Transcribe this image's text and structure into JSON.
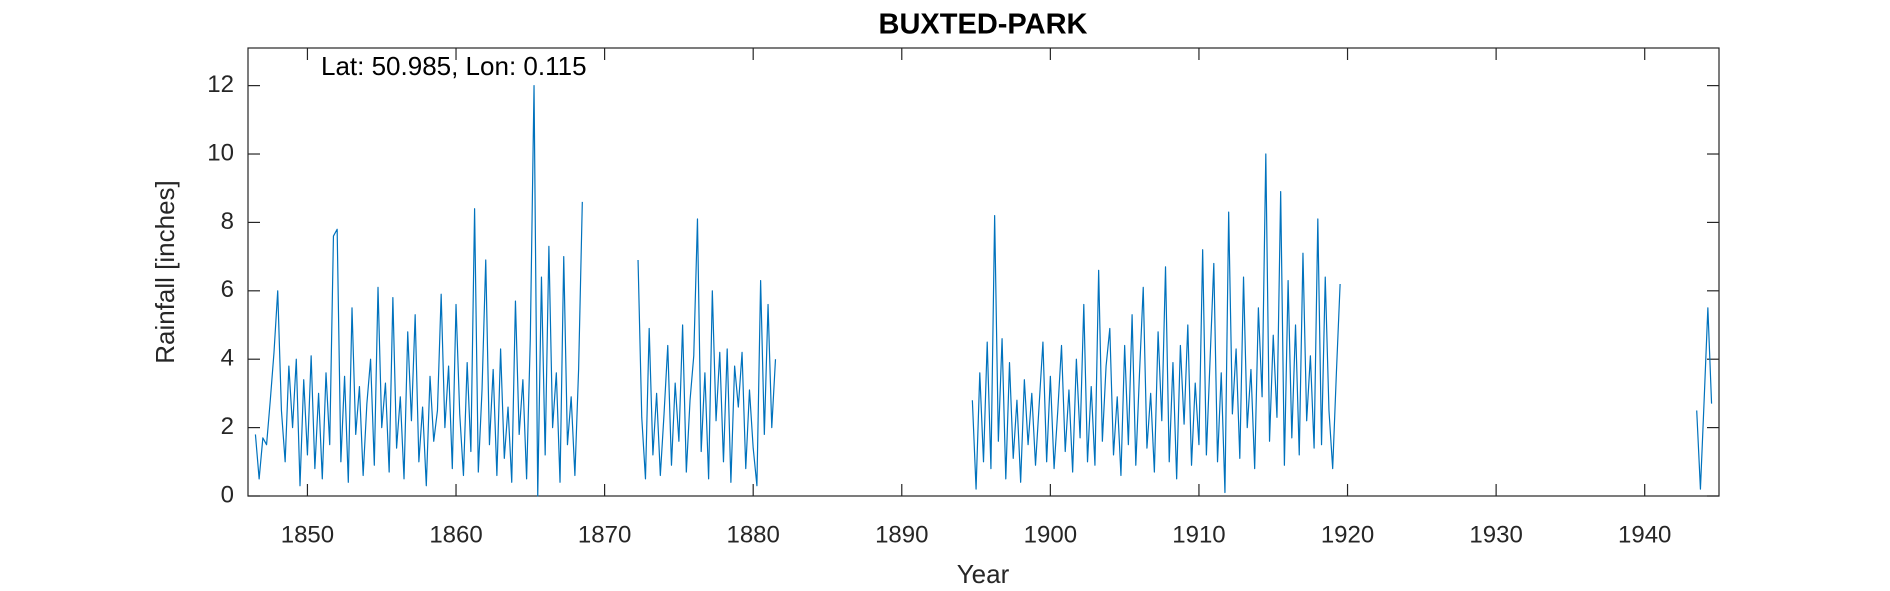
{
  "chart_data": {
    "type": "line",
    "title": "BUXTED-PARK",
    "annotation": "Lat: 50.985, Lon: 0.115",
    "x_label": "Year",
    "y_label": "Rainfall [inches]",
    "color": "#0072BD",
    "grid": false,
    "xlim": [
      1846,
      1945
    ],
    "xticks": [
      1850,
      1860,
      1870,
      1880,
      1890,
      1900,
      1910,
      1920,
      1930,
      1940
    ],
    "ylim": [
      0,
      13.1
    ],
    "yticks": [
      0,
      2,
      4,
      6,
      8,
      10,
      12
    ],
    "x": [
      1846.5,
      1846.75,
      1847,
      1847.25,
      1847.5,
      1847.75,
      1848,
      1848.25,
      1848.5,
      1848.75,
      1849,
      1849.25,
      1849.5,
      1849.75,
      1850,
      1850.25,
      1850.5,
      1850.75,
      1851,
      1851.25,
      1851.5,
      1851.75,
      1852,
      1852.25,
      1852.5,
      1852.75,
      1853,
      1853.25,
      1853.5,
      1853.75,
      1854,
      1854.25,
      1854.5,
      1854.75,
      1855,
      1855.25,
      1855.5,
      1855.75,
      1856,
      1856.25,
      1856.5,
      1856.75,
      1857,
      1857.25,
      1857.5,
      1857.75,
      1858,
      1858.25,
      1858.5,
      1858.75,
      1859,
      1859.25,
      1859.5,
      1859.75,
      1860,
      1860.25,
      1860.5,
      1860.75,
      1861,
      1861.25,
      1861.5,
      1861.75,
      1862,
      1862.25,
      1862.5,
      1862.75,
      1863,
      1863.25,
      1863.5,
      1863.75,
      1864,
      1864.25,
      1864.5,
      1864.75,
      1865,
      1865.25,
      1865.5,
      1865.75,
      1866,
      1866.25,
      1866.5,
      1866.75,
      1867,
      1867.25,
      1867.5,
      1867.75,
      1868,
      1868.25,
      1868.5,
      1870,
      1872.25,
      1872.5,
      1872.75,
      1873,
      1873.25,
      1873.5,
      1873.75,
      1874,
      1874.25,
      1874.5,
      1874.75,
      1875,
      1875.25,
      1875.5,
      1875.75,
      1876,
      1876.25,
      1876.5,
      1876.75,
      1877,
      1877.25,
      1877.5,
      1877.75,
      1878,
      1878.25,
      1878.5,
      1878.75,
      1879,
      1879.25,
      1879.5,
      1879.75,
      1880,
      1880.25,
      1880.5,
      1880.75,
      1881,
      1881.25,
      1881.5,
      1888,
      1894.75,
      1895,
      1895.25,
      1895.5,
      1895.75,
      1896,
      1896.25,
      1896.5,
      1896.75,
      1897,
      1897.25,
      1897.5,
      1897.75,
      1898,
      1898.25,
      1898.5,
      1898.75,
      1899,
      1899.25,
      1899.5,
      1899.75,
      1900,
      1900.25,
      1900.5,
      1900.75,
      1901,
      1901.25,
      1901.5,
      1901.75,
      1902,
      1902.25,
      1902.5,
      1902.75,
      1903,
      1903.25,
      1903.5,
      1903.75,
      1904,
      1904.25,
      1904.5,
      1904.75,
      1905,
      1905.25,
      1905.5,
      1905.75,
      1906,
      1906.25,
      1906.5,
      1906.75,
      1907,
      1907.25,
      1907.5,
      1907.75,
      1908,
      1908.25,
      1908.5,
      1908.75,
      1909,
      1909.25,
      1909.5,
      1909.75,
      1910,
      1910.25,
      1910.5,
      1910.75,
      1911,
      1911.25,
      1911.5,
      1911.75,
      1912,
      1912.25,
      1912.5,
      1912.75,
      1913,
      1913.25,
      1913.5,
      1913.75,
      1914,
      1914.25,
      1914.5,
      1914.75,
      1915,
      1915.25,
      1915.5,
      1915.75,
      1916,
      1916.25,
      1916.5,
      1916.75,
      1917,
      1917.25,
      1917.5,
      1917.75,
      1918,
      1918.25,
      1918.5,
      1918.75,
      1919,
      1919.25,
      1919.5,
      1930,
      1943.5,
      1943.75,
      1944,
      1944.25,
      1944.5
    ],
    "values": [
      1.8,
      0.5,
      1.7,
      1.5,
      2.8,
      4.2,
      6.0,
      2.5,
      1.0,
      3.8,
      2.0,
      4.0,
      0.3,
      3.4,
      1.2,
      4.1,
      0.8,
      3.0,
      0.5,
      3.6,
      1.5,
      7.6,
      7.8,
      1.0,
      3.5,
      0.4,
      5.5,
      1.8,
      3.2,
      0.6,
      2.7,
      4.0,
      0.9,
      6.1,
      2.0,
      3.3,
      0.7,
      5.8,
      1.4,
      2.9,
      0.5,
      4.8,
      2.2,
      5.3,
      1.0,
      2.6,
      0.3,
      3.5,
      1.6,
      2.5,
      5.9,
      2.0,
      3.8,
      0.8,
      5.6,
      2.4,
      0.6,
      3.9,
      1.3,
      8.4,
      0.7,
      3.1,
      6.9,
      1.5,
      3.7,
      0.6,
      4.3,
      1.1,
      2.6,
      0.4,
      5.7,
      1.8,
      3.4,
      0.5,
      4.6,
      12.0,
      0.0,
      6.4,
      1.2,
      7.3,
      2.0,
      3.6,
      0.4,
      7.0,
      1.5,
      2.9,
      0.6,
      3.7,
      8.6,
      null,
      6.9,
      2.3,
      0.5,
      4.9,
      1.2,
      3.0,
      0.6,
      2.4,
      4.4,
      0.9,
      3.3,
      1.6,
      5.0,
      0.7,
      2.8,
      4.1,
      8.1,
      1.3,
      3.6,
      0.5,
      6.0,
      2.2,
      4.2,
      1.0,
      4.3,
      0.4,
      3.8,
      2.6,
      4.2,
      0.8,
      3.1,
      1.4,
      0.3,
      6.3,
      1.8,
      5.6,
      2.0,
      4.0,
      null,
      2.8,
      0.2,
      3.6,
      1.0,
      4.5,
      0.8,
      8.2,
      1.6,
      4.6,
      0.5,
      3.9,
      1.1,
      2.8,
      0.4,
      3.4,
      1.5,
      3.0,
      0.9,
      2.7,
      4.5,
      1.0,
      3.5,
      0.8,
      2.5,
      4.4,
      1.3,
      3.1,
      0.7,
      4.0,
      1.7,
      5.6,
      1.0,
      3.2,
      0.9,
      6.6,
      1.6,
      3.8,
      4.9,
      1.2,
      2.9,
      0.6,
      4.4,
      1.5,
      5.3,
      0.9,
      3.6,
      6.1,
      1.4,
      3.0,
      0.7,
      4.8,
      2.2,
      6.7,
      1.0,
      3.9,
      0.5,
      4.4,
      2.1,
      5.0,
      0.9,
      3.3,
      1.5,
      7.2,
      1.2,
      4.0,
      6.8,
      1.0,
      3.6,
      0.1,
      8.3,
      2.4,
      4.3,
      1.1,
      6.4,
      2.0,
      3.7,
      0.8,
      5.5,
      2.9,
      10.0,
      1.6,
      4.7,
      2.3,
      8.9,
      0.9,
      6.3,
      1.7,
      5.0,
      1.2,
      7.1,
      2.2,
      4.1,
      1.4,
      8.1,
      1.5,
      6.4,
      2.5,
      0.8,
      3.6,
      6.2,
      null,
      2.5,
      0.2,
      2.8,
      5.5,
      2.7
    ]
  }
}
